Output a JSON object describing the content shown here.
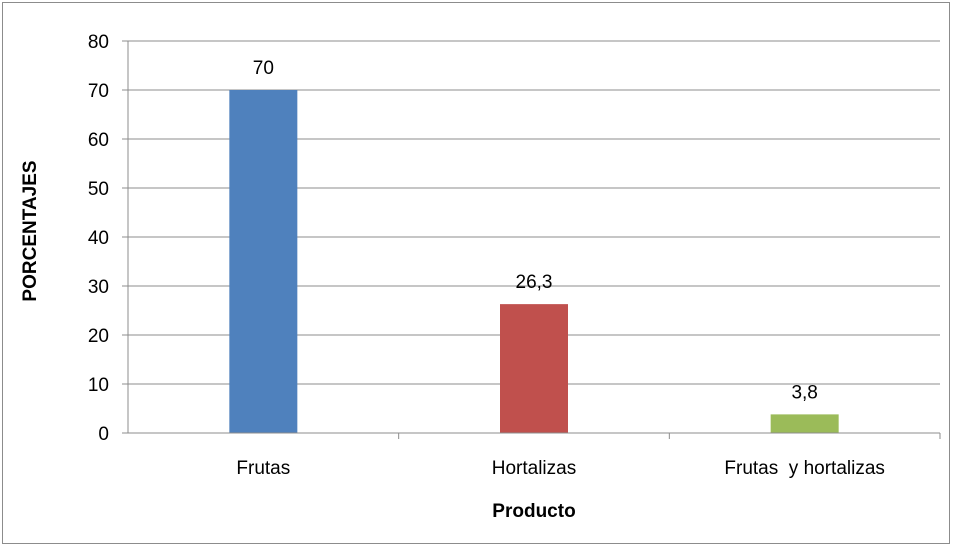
{
  "chart_data": {
    "type": "bar",
    "title": "",
    "xlabel": "Producto",
    "ylabel": "PORCENTAJES",
    "categories": [
      "Frutas",
      "Hortalizas",
      "Frutas  y hortalizas"
    ],
    "values": [
      70,
      26.3,
      3.8
    ],
    "data_labels": [
      "70",
      "26,3",
      "3,8"
    ],
    "bar_colors": [
      "#4f81bd",
      "#c0504d",
      "#9bbb59"
    ],
    "ylim": [
      0,
      80
    ],
    "yticks": [
      0,
      10,
      20,
      30,
      40,
      50,
      60,
      70,
      80
    ],
    "grid": true,
    "legend": "none"
  }
}
